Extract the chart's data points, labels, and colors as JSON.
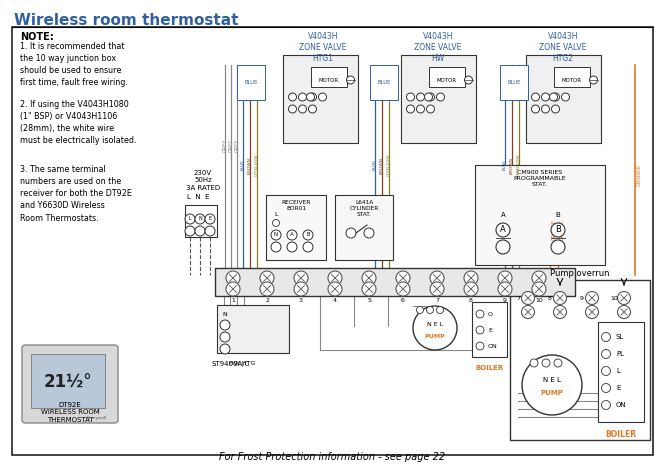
{
  "title": "Wireless room thermostat",
  "title_color": "#3060A0",
  "title_fontsize": 11,
  "bg_color": "#ffffff",
  "note_text": "NOTE:",
  "note1": "1. It is recommended that\nthe 10 way junction box\nshould be used to ensure\nfirst time, fault free wiring.",
  "note2": "2. If using the V4043H1080\n(1\" BSP) or V4043H1106\n(28mm), the white wire\nmust be electrically isolated.",
  "note3": "3. The same terminal\nnumbers are used on the\nreceiver for both the DT92E\nand Y6630D Wireless\nRoom Thermostats.",
  "label_htg1": "V4043H\nZONE VALVE\nHTG1",
  "label_hw": "V4043H\nZONE VALVE\nHW",
  "label_htg2": "V4043H\nZONE VALVE\nHTG2",
  "label_receiver": "RECEIVER\nBOR01",
  "label_cylinder": "L641A\nCYLINDER\nSTAT.",
  "label_cm900": "CM900 SERIES\nPROGRAMMABLE\nSTAT.",
  "label_st9400": "ST9400A/C",
  "label_hw_htg": "HW HTG",
  "label_boiler": "BOILER",
  "label_pump_overrun": "Pump overrun",
  "label_boiler2": "BOILER",
  "label_dt92e": "DT92E\nWIRELESS ROOM\nTHERMOSTAT",
  "footer": "For Frost Protection information - see page 22",
  "supply_text": "230V\n50Hz\n3A RATED",
  "clr_grey": "#888888",
  "clr_blue": "#3060A0",
  "clr_orange": "#E07820",
  "clr_brown": "#804020",
  "clr_gyellow": "#808020",
  "clr_black": "#000000",
  "clr_dark": "#333333",
  "clr_mid": "#555555",
  "clr_light": "#f0f0f0",
  "clr_wire_bg": "#e8e8e8"
}
